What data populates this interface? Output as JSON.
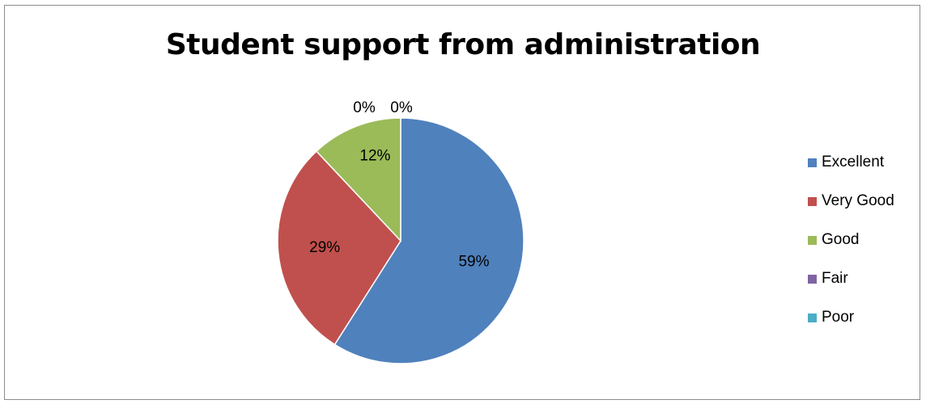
{
  "chart_data": {
    "type": "pie",
    "title": "Student support from administration",
    "slices": [
      {
        "name": "Excellent",
        "value": 59,
        "label": "59%",
        "color": "#4F81BD"
      },
      {
        "name": "Very Good",
        "value": 29,
        "label": "29%",
        "color": "#C0504D"
      },
      {
        "name": "Good",
        "value": 12,
        "label": "12%",
        "color": "#9BBB59"
      },
      {
        "name": "Fair",
        "value": 0,
        "label": "0%",
        "color": "#8064A2"
      },
      {
        "name": "Poor",
        "value": 0,
        "label": "0%",
        "color": "#4BACC6"
      }
    ],
    "legend_position": "right"
  }
}
